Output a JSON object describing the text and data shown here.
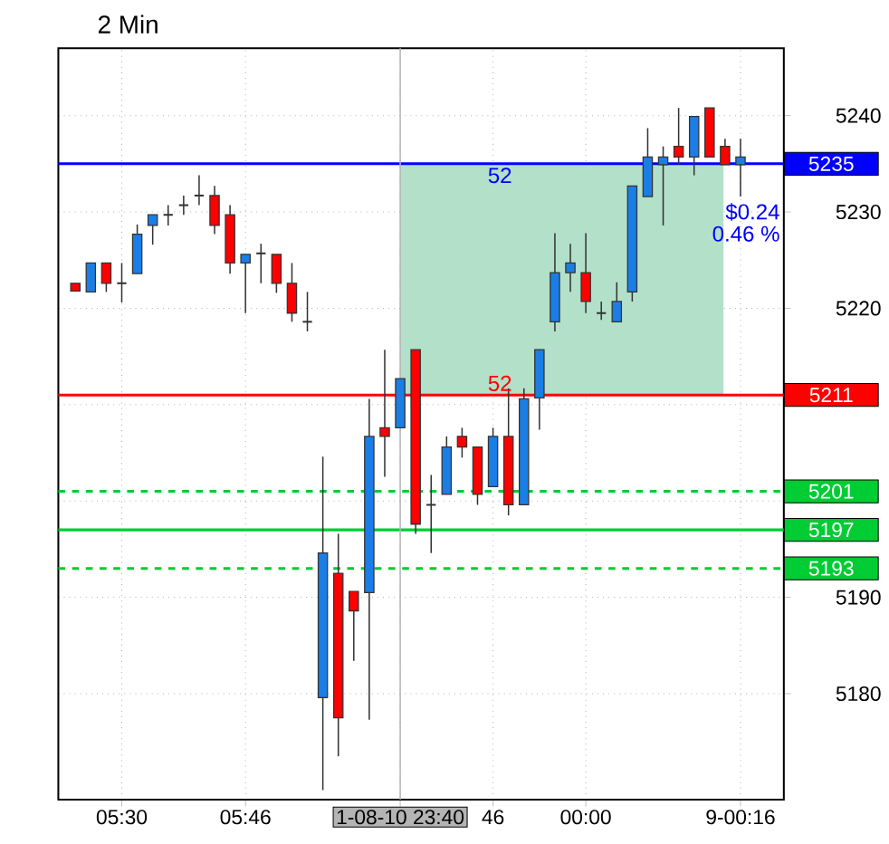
{
  "chart_data": {
    "type": "candlestick",
    "title": "2 Min",
    "categories": [
      null,
      null,
      null,
      "05:30",
      null,
      null,
      null,
      null,
      null,
      null,
      null,
      "05:46",
      null,
      null,
      null,
      null,
      null,
      null,
      null,
      null,
      null,
      "1-08-10 23:40",
      null,
      null,
      null,
      null,
      null,
      "46",
      null,
      null,
      null,
      null,
      null,
      "00:00",
      null,
      null,
      null,
      null,
      null,
      null,
      null,
      null,
      null,
      "9-00:16"
    ],
    "ohlc": [
      [
        5222.6,
        5222.6,
        5221.8,
        5221.8
      ],
      [
        5221.7,
        5224.7,
        5221.7,
        5224.7
      ],
      [
        5224.7,
        5224.7,
        5221.7,
        5222.6
      ],
      [
        5222.6,
        5224.7,
        5220.6,
        5222.6
      ],
      [
        5223.6,
        5228.7,
        5223.6,
        5227.7
      ],
      [
        5228.6,
        5229.7,
        5226.6,
        5229.7
      ],
      [
        5229.7,
        5230.7,
        5228.6,
        5229.7
      ],
      [
        5230.7,
        5231.7,
        5229.7,
        5230.7
      ],
      [
        5231.7,
        5233.8,
        5230.7,
        5231.7
      ],
      [
        5231.7,
        5232.7,
        5227.7,
        5228.6
      ],
      [
        5229.7,
        5230.7,
        5223.6,
        5224.7
      ],
      [
        5224.7,
        5225.6,
        5219.5,
        5225.6
      ],
      [
        5225.7,
        5226.7,
        5222.6,
        5225.7
      ],
      [
        5225.6,
        5225.6,
        5221.6,
        5222.6
      ],
      [
        5222.6,
        5224.7,
        5218.6,
        5219.5
      ],
      [
        5218.6,
        5221.7,
        5217.6,
        5218.6
      ],
      [
        5179.6,
        5204.6,
        5170.0,
        5194.6
      ],
      [
        5192.5,
        5196.6,
        5173.5,
        5177.5
      ],
      [
        5190.6,
        5190.6,
        5183.4,
        5188.6
      ],
      [
        5190.5,
        5210.6,
        5177.3,
        5206.7
      ],
      [
        5207.6,
        5215.7,
        5202.5,
        5206.7
      ],
      [
        5207.6,
        5212.7,
        5207.6,
        5212.7
      ],
      [
        5215.7,
        5215.7,
        5196.6,
        5197.6
      ],
      [
        5199.6,
        5202.7,
        5194.6,
        5199.6
      ],
      [
        5200.7,
        5206.7,
        5200.7,
        5205.6
      ],
      [
        5206.7,
        5207.6,
        5204.5,
        5205.6
      ],
      [
        5205.6,
        5205.6,
        5199.6,
        5200.7
      ],
      [
        5201.5,
        5207.6,
        5201.5,
        5206.7
      ],
      [
        5206.7,
        5211.7,
        5198.5,
        5199.6
      ],
      [
        5199.6,
        5211.7,
        5199.6,
        5210.6
      ],
      [
        5210.7,
        5215.7,
        5207.4,
        5215.7
      ],
      [
        5218.6,
        5227.8,
        5217.6,
        5223.7
      ],
      [
        5223.7,
        5226.7,
        5221.7,
        5224.7
      ],
      [
        5223.7,
        5227.8,
        5219.5,
        5220.7
      ],
      [
        5219.5,
        5220.7,
        5218.8,
        5219.5
      ],
      [
        5218.6,
        5222.7,
        5218.6,
        5220.7
      ],
      [
        5221.7,
        5232.7,
        5220.7,
        5232.7
      ],
      [
        5231.6,
        5238.7,
        5231.6,
        5235.7
      ],
      [
        5234.9,
        5236.8,
        5228.6,
        5235.7
      ],
      [
        5236.8,
        5240.8,
        5234.9,
        5235.7
      ],
      [
        5235.7,
        5239.9,
        5233.8,
        5239.9
      ],
      [
        5240.8,
        5240.8,
        5235.7,
        5235.7
      ],
      [
        5236.8,
        5237.6,
        5234.9,
        5234.9
      ],
      [
        5234.9,
        5237.6,
        5231.6,
        5235.7
      ]
    ],
    "colors": [
      "#ff0000",
      "#1a7ee6",
      "#ff0000",
      "#333333",
      "#1a7ee6",
      "#1a7ee6",
      "#333333",
      "#333333",
      "#333333",
      "#ff0000",
      "#ff0000",
      "#1a7ee6",
      "#333333",
      "#ff0000",
      "#ff0000",
      "#333333",
      "#1a7ee6",
      "#ff0000",
      "#ff0000",
      "#1a7ee6",
      "#ff0000",
      "#1a7ee6",
      "#ff0000",
      "#333333",
      "#1a7ee6",
      "#ff0000",
      "#ff0000",
      "#1a7ee6",
      "#ff0000",
      "#1a7ee6",
      "#1a7ee6",
      "#1a7ee6",
      "#1a7ee6",
      "#ff0000",
      "#333333",
      "#1a7ee6",
      "#1a7ee6",
      "#1a7ee6",
      "#1a7ee6",
      "#ff0000",
      "#1a7ee6",
      "#ff0000",
      "#ff0000",
      "#1a7ee6"
    ],
    "ylim": [
      5169,
      5247
    ],
    "yticks": [
      5240,
      5230,
      5220,
      {
        "value": 5210,
        "label": null
      },
      {
        "value": 5200,
        "label": null
      },
      5190,
      5180
    ],
    "grid": true,
    "ref_lines": [
      {
        "axis": "y",
        "value": 5235,
        "label": "5235",
        "color": "#0000ff",
        "line_style": "solid"
      },
      {
        "axis": "y",
        "value": 5211,
        "label": "5211",
        "color": "#ff0000",
        "line_style": "solid"
      },
      {
        "axis": "y",
        "value": 5201,
        "label": "5201",
        "color": "#00cc33",
        "line_style": "dashed"
      },
      {
        "axis": "y",
        "value": 5197,
        "label": "5197",
        "color": "#00cc33",
        "line_style": "solid"
      },
      {
        "axis": "y",
        "value": 5193,
        "label": "5193",
        "color": "#00cc33",
        "line_style": "dashed"
      },
      {
        "axis": "x",
        "value": "1-08-10 23:40",
        "color": "#b4b4b4",
        "line_style": "solid"
      }
    ],
    "bands": [
      {
        "axis": "y",
        "from": 5211,
        "to": 5235,
        "color": "#b3e0c8"
      }
    ],
    "annotations": [
      "52",
      "52",
      "$0.24",
      "0.46 %"
    ]
  }
}
